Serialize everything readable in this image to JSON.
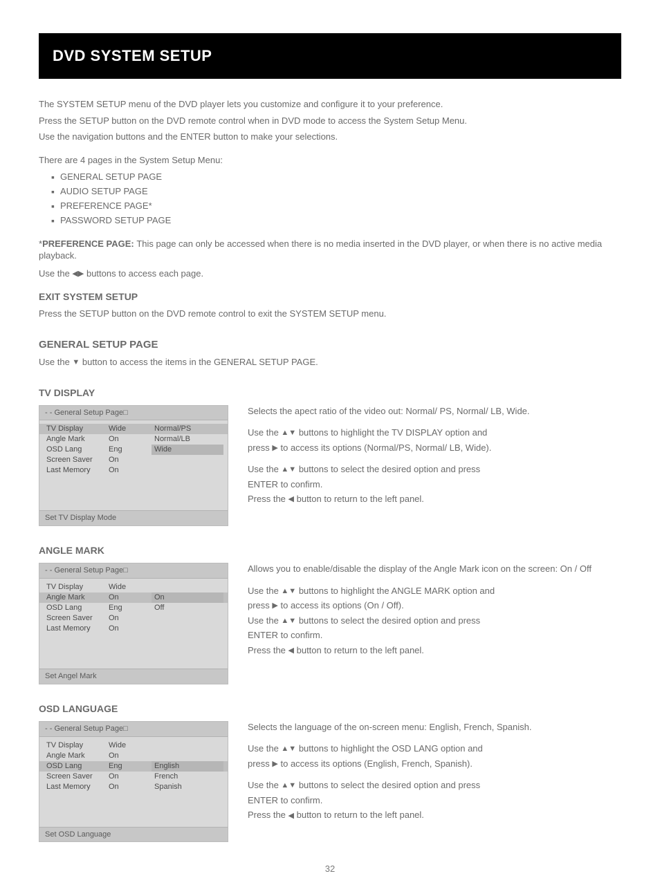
{
  "banner_title": "DVD SYSTEM SETUP",
  "page_number": "32",
  "intro": {
    "p1": "The SYSTEM SETUP menu of the DVD player lets you customize and configure it to your preference.",
    "p2": "Press the SETUP button on the DVD remote control when in DVD mode to access the System Setup Menu.",
    "p3": "Use the navigation buttons and the ENTER button to make your selections."
  },
  "pages_label": "There are 4 pages in the System Setup Menu:",
  "pages": [
    "GENERAL SETUP PAGE",
    "AUDIO SETUP PAGE",
    "PREFERENCE PAGE*",
    "PASSWORD SETUP PAGE"
  ],
  "pref_note_title": "PREFERENCE PAGE: ",
  "pref_note_body": "This page can only be accessed when there is no media inserted in the DVD player, or when there is no active media playback.",
  "nav_note_pre": "Use the ",
  "nav_note_post": " buttons to access each page.",
  "exit_title": "EXIT SYSTEM SETUP",
  "exit_body": "Press the SETUP button on the DVD remote control to exit the SYSTEM SETUP menu.",
  "general_title": "GENERAL SETUP PAGE",
  "general_intro_pre": "Use the   ",
  "general_intro_post": "  button to access the items in the GENERAL SETUP PAGE.",
  "glyphs": {
    "up": "▲",
    "down": "▼",
    "left": "◀",
    "right": "▶",
    "bullet": "▪",
    "box": "□"
  },
  "sections": [
    {
      "title": "TV DISPLAY",
      "desc": "Selects the apect ratio of the video out: Normal/ PS, Normal/ LB, Wide.",
      "lines": [
        {
          "pre": "Use the  ",
          "g": "updown",
          "post": "  buttons to highlight the TV DISPLAY option and"
        },
        {
          "pre": "press  ",
          "g": "right",
          "post": "  to access its options (Normal/PS, Normal/ LB, Wide)."
        },
        {
          "pre": "",
          "g": "",
          "post": ""
        },
        {
          "pre": "Use the  ",
          "g": "updown",
          "post": "  buttons to select the desired option and press"
        },
        {
          "pre": "",
          "g": "",
          "post": "ENTER to confirm."
        },
        {
          "pre": "Press the  ",
          "g": "left",
          "post": "  button to return to the left panel."
        }
      ],
      "menu": {
        "header": "- - General Setup Page",
        "footer": "Set TV Display Mode",
        "rows": [
          {
            "c1": "TV Display",
            "c2": "Wide",
            "sel": true
          },
          {
            "c1": "Angle Mark",
            "c2": "On",
            "sel": false
          },
          {
            "c1": "OSD Lang",
            "c2": "Eng",
            "sel": false
          },
          {
            "c1": "Screen Saver",
            "c2": "On",
            "sel": false
          },
          {
            "c1": "Last Memory",
            "c2": "On",
            "sel": false
          }
        ],
        "opts": [
          {
            "t": "Normal/PS",
            "hi": false
          },
          {
            "t": "Normal/LB",
            "hi": false
          },
          {
            "t": "Wide",
            "hi": true
          }
        ],
        "opt_start": 0
      }
    },
    {
      "title": "ANGLE MARK",
      "desc": "Allows you to enable/disable the display of the Angle Mark icon on the screen: On / Off",
      "lines": [
        {
          "pre": "Use the  ",
          "g": "updown",
          "post": "  buttons to highlight the ANGLE MARK option and"
        },
        {
          "pre": "press  ",
          "g": "right",
          "post": "  to access its options (On / Off)."
        },
        {
          "pre": "Use the  ",
          "g": "updown",
          "post": "  buttons to select the desired option and press"
        },
        {
          "pre": "",
          "g": "",
          "post": "ENTER to confirm."
        },
        {
          "pre": "Press the  ",
          "g": "left",
          "post": "  button to return to the left panel."
        }
      ],
      "menu": {
        "header": "- - General Setup Page",
        "footer": "Set Angel Mark",
        "rows": [
          {
            "c1": "TV Display",
            "c2": "Wide",
            "sel": false
          },
          {
            "c1": "Angle Mark",
            "c2": "On",
            "sel": true
          },
          {
            "c1": "OSD Lang",
            "c2": "Eng",
            "sel": false
          },
          {
            "c1": "Screen Saver",
            "c2": "On",
            "sel": false
          },
          {
            "c1": "Last Memory",
            "c2": "On",
            "sel": false
          }
        ],
        "opts": [
          {
            "t": "On",
            "hi": true
          },
          {
            "t": "Off",
            "hi": false
          }
        ],
        "opt_start": 1
      }
    },
    {
      "title": "OSD LANGUAGE",
      "desc": "Selects the language of the on-screen menu: English, French, Spanish.",
      "lines": [
        {
          "pre": "Use the  ",
          "g": "updown",
          "post": "  buttons to highlight the OSD LANG option and"
        },
        {
          "pre": "press  ",
          "g": "right",
          "post": "  to access its options (English, French, Spanish)."
        },
        {
          "pre": "",
          "g": "",
          "post": ""
        },
        {
          "pre": "Use the  ",
          "g": "updown",
          "post": "  buttons to select the desired option and press"
        },
        {
          "pre": "",
          "g": "",
          "post": "ENTER to confirm."
        },
        {
          "pre": "Press the  ",
          "g": "left",
          "post": "  button to return to the left panel."
        }
      ],
      "menu": {
        "header": "- - General Setup Page",
        "footer": "Set OSD Language",
        "rows": [
          {
            "c1": "TV Display",
            "c2": "Wide",
            "sel": false
          },
          {
            "c1": "Angle Mark",
            "c2": "On",
            "sel": false
          },
          {
            "c1": "OSD Lang",
            "c2": "Eng",
            "sel": true
          },
          {
            "c1": "Screen Saver",
            "c2": "On",
            "sel": false
          },
          {
            "c1": "Last Memory",
            "c2": "On",
            "sel": false
          }
        ],
        "opts": [
          {
            "t": "English",
            "hi": true
          },
          {
            "t": "French",
            "hi": false
          },
          {
            "t": "Spanish",
            "hi": false
          }
        ],
        "opt_start": 2
      }
    }
  ]
}
